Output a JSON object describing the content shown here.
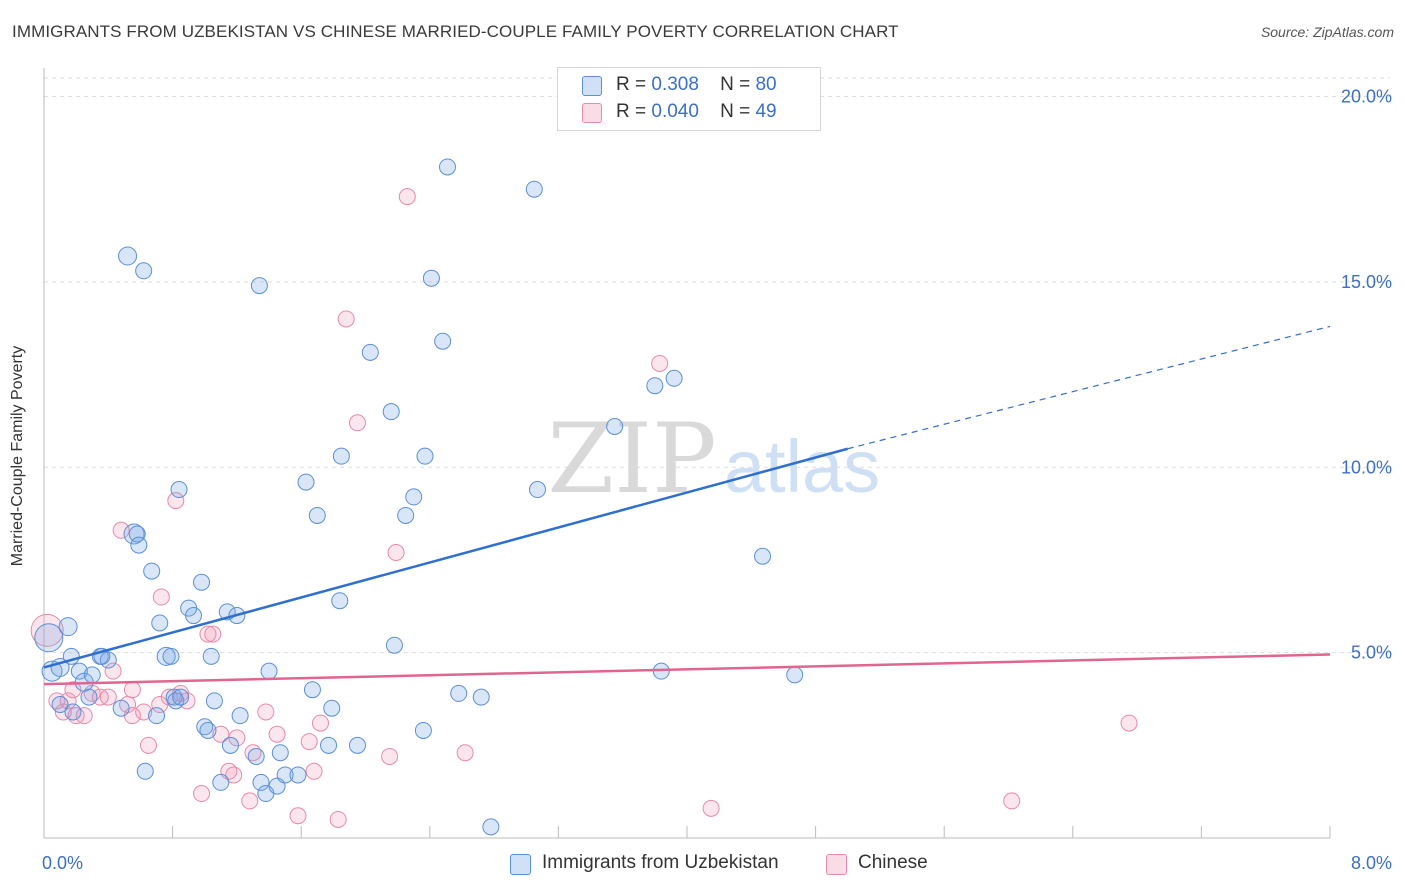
{
  "title": "IMMIGRANTS FROM UZBEKISTAN VS CHINESE MARRIED-COUPLE FAMILY POVERTY CORRELATION CHART",
  "source": "Source: ZipAtlas.com",
  "watermark": {
    "zip": "ZIP",
    "atlas": "atlas"
  },
  "legend": {
    "r_label": "R =",
    "n_label": "N =",
    "series1": {
      "r": "0.308",
      "n": "80"
    },
    "series2": {
      "r": "0.040",
      "n": "49"
    }
  },
  "chart_data": {
    "type": "scatter",
    "title": "IMMIGRANTS FROM UZBEKISTAN VS CHINESE MARRIED-COUPLE FAMILY POVERTY CORRELATION CHART",
    "xlabel": "",
    "ylabel": "Married-Couple Family Poverty",
    "xlim": [
      0,
      8
    ],
    "ylim": [
      0,
      20.5
    ],
    "x_tick_labels": [
      "0.0%",
      "8.0%"
    ],
    "y_ticks": [
      5,
      10,
      15,
      20
    ],
    "y_tick_labels": [
      "5.0%",
      "10.0%",
      "15.0%",
      "20.0%"
    ],
    "grid": true,
    "colors": {
      "series1_fill": "rgba(120,165,230,0.28)",
      "series1_stroke": "#5b8fd6",
      "series1_line": "#2f6fd0",
      "series2_fill": "rgba(240,140,175,0.22)",
      "series2_stroke": "#e88aa8",
      "series2_line": "#e06691",
      "axis_label": "#3b6fc9",
      "grid": "#dedede"
    },
    "series": [
      {
        "name": "Immigrants from Uzbekistan",
        "r": 0.308,
        "n": 80,
        "trend": {
          "x0": 0.0,
          "y0": 4.6,
          "x1": 5.0,
          "y1": 10.5,
          "dash_to_x": 8.0,
          "dash_to_y": 13.8
        },
        "points": [
          [
            0.03,
            5.4,
            14
          ],
          [
            0.05,
            4.5,
            10
          ],
          [
            0.1,
            4.6,
            9
          ],
          [
            0.15,
            5.7,
            9
          ],
          [
            0.17,
            4.9,
            8
          ],
          [
            0.22,
            4.5,
            8
          ],
          [
            0.25,
            4.2,
            9
          ],
          [
            0.28,
            3.8,
            8
          ],
          [
            0.3,
            4.4,
            8
          ],
          [
            0.1,
            3.6,
            8
          ],
          [
            0.18,
            3.4,
            8
          ],
          [
            0.35,
            4.9,
            8
          ],
          [
            0.4,
            4.8,
            8
          ],
          [
            0.48,
            3.5,
            8
          ],
          [
            0.52,
            15.7,
            9
          ],
          [
            0.56,
            8.2,
            10
          ],
          [
            0.58,
            8.2,
            8
          ],
          [
            0.59,
            7.9,
            8
          ],
          [
            0.62,
            15.3,
            8
          ],
          [
            0.63,
            1.8,
            8
          ],
          [
            0.67,
            7.2,
            8
          ],
          [
            0.7,
            3.3,
            8
          ],
          [
            0.72,
            5.8,
            8
          ],
          [
            0.76,
            4.9,
            9
          ],
          [
            0.79,
            4.9,
            8
          ],
          [
            0.81,
            3.8,
            8
          ],
          [
            0.82,
            3.7,
            8
          ],
          [
            0.84,
            9.4,
            8
          ],
          [
            0.85,
            3.8,
            8
          ],
          [
            0.9,
            6.2,
            8
          ],
          [
            0.93,
            6.0,
            8
          ],
          [
            0.98,
            6.9,
            8
          ],
          [
            1.0,
            3.0,
            8
          ],
          [
            1.02,
            2.9,
            8
          ],
          [
            1.04,
            4.9,
            8
          ],
          [
            1.06,
            3.7,
            8
          ],
          [
            1.1,
            1.5,
            8
          ],
          [
            1.14,
            6.1,
            8
          ],
          [
            1.16,
            2.5,
            8
          ],
          [
            1.2,
            6.0,
            8
          ],
          [
            1.22,
            3.3,
            8
          ],
          [
            1.32,
            2.2,
            8
          ],
          [
            1.34,
            14.9,
            8
          ],
          [
            1.35,
            1.5,
            8
          ],
          [
            1.38,
            1.2,
            8
          ],
          [
            1.4,
            4.5,
            8
          ],
          [
            1.45,
            1.4,
            8
          ],
          [
            1.47,
            2.3,
            8
          ],
          [
            1.5,
            1.7,
            8
          ],
          [
            1.58,
            1.7,
            8
          ],
          [
            1.63,
            9.6,
            8
          ],
          [
            1.67,
            4.0,
            8
          ],
          [
            1.7,
            8.7,
            8
          ],
          [
            1.77,
            2.5,
            8
          ],
          [
            1.79,
            3.5,
            8
          ],
          [
            1.84,
            6.4,
            8
          ],
          [
            1.85,
            10.3,
            8
          ],
          [
            1.95,
            2.5,
            8
          ],
          [
            2.03,
            13.1,
            8
          ],
          [
            2.16,
            11.5,
            8
          ],
          [
            2.18,
            5.2,
            8
          ],
          [
            2.25,
            8.7,
            8
          ],
          [
            2.3,
            9.2,
            8
          ],
          [
            2.36,
            2.9,
            8
          ],
          [
            2.37,
            10.3,
            8
          ],
          [
            2.41,
            15.1,
            8
          ],
          [
            2.48,
            13.4,
            8
          ],
          [
            2.51,
            18.1,
            8
          ],
          [
            2.58,
            3.9,
            8
          ],
          [
            2.72,
            3.8,
            8
          ],
          [
            2.78,
            0.3,
            8
          ],
          [
            3.05,
            17.5,
            8
          ],
          [
            3.07,
            9.4,
            8
          ],
          [
            3.55,
            11.1,
            8
          ],
          [
            3.8,
            12.2,
            8
          ],
          [
            3.84,
            4.5,
            8
          ],
          [
            3.92,
            12.4,
            8
          ],
          [
            4.47,
            7.6,
            8
          ],
          [
            4.67,
            4.4,
            8
          ],
          [
            0.36,
            4.9,
            8
          ]
        ]
      },
      {
        "name": "Chinese",
        "r": 0.04,
        "n": 49,
        "trend": {
          "x0": 0.0,
          "y0": 4.15,
          "x1": 8.0,
          "y1": 4.95
        },
        "points": [
          [
            0.02,
            5.6,
            16
          ],
          [
            0.08,
            3.7,
            8
          ],
          [
            0.12,
            3.4,
            8
          ],
          [
            0.15,
            3.7,
            8
          ],
          [
            0.18,
            4.0,
            8
          ],
          [
            0.2,
            3.3,
            8
          ],
          [
            0.25,
            3.3,
            8
          ],
          [
            0.3,
            3.9,
            8
          ],
          [
            0.35,
            3.8,
            8
          ],
          [
            0.4,
            3.8,
            8
          ],
          [
            0.43,
            4.5,
            8
          ],
          [
            0.48,
            8.3,
            8
          ],
          [
            0.52,
            3.6,
            8
          ],
          [
            0.55,
            4.0,
            8
          ],
          [
            0.62,
            3.4,
            8
          ],
          [
            0.65,
            2.5,
            8
          ],
          [
            0.72,
            3.6,
            8
          ],
          [
            0.73,
            6.5,
            8
          ],
          [
            0.78,
            3.8,
            8
          ],
          [
            0.82,
            9.1,
            8
          ],
          [
            0.85,
            3.9,
            8
          ],
          [
            0.89,
            3.7,
            8
          ],
          [
            0.98,
            1.2,
            8
          ],
          [
            1.02,
            5.5,
            8
          ],
          [
            1.05,
            5.5,
            8
          ],
          [
            1.1,
            2.8,
            8
          ],
          [
            1.15,
            1.8,
            8
          ],
          [
            1.18,
            1.7,
            8
          ],
          [
            1.2,
            2.7,
            8
          ],
          [
            1.28,
            1.0,
            8
          ],
          [
            1.3,
            2.3,
            8
          ],
          [
            1.38,
            3.4,
            8
          ],
          [
            1.45,
            2.8,
            8
          ],
          [
            1.58,
            0.6,
            8
          ],
          [
            1.65,
            2.6,
            8
          ],
          [
            1.68,
            1.8,
            8
          ],
          [
            1.72,
            3.1,
            8
          ],
          [
            1.83,
            0.5,
            8
          ],
          [
            1.88,
            14.0,
            8
          ],
          [
            1.95,
            11.2,
            8
          ],
          [
            2.15,
            2.2,
            8
          ],
          [
            2.19,
            7.7,
            8
          ],
          [
            2.26,
            17.3,
            8
          ],
          [
            2.62,
            2.3,
            8
          ],
          [
            3.83,
            12.8,
            8
          ],
          [
            4.15,
            0.8,
            8
          ],
          [
            6.02,
            1.0,
            8
          ],
          [
            6.75,
            3.1,
            8
          ],
          [
            0.55,
            3.3,
            8
          ]
        ]
      }
    ]
  },
  "bottom_legend": {
    "series1": "Immigrants from Uzbekistan",
    "series2": "Chinese"
  }
}
